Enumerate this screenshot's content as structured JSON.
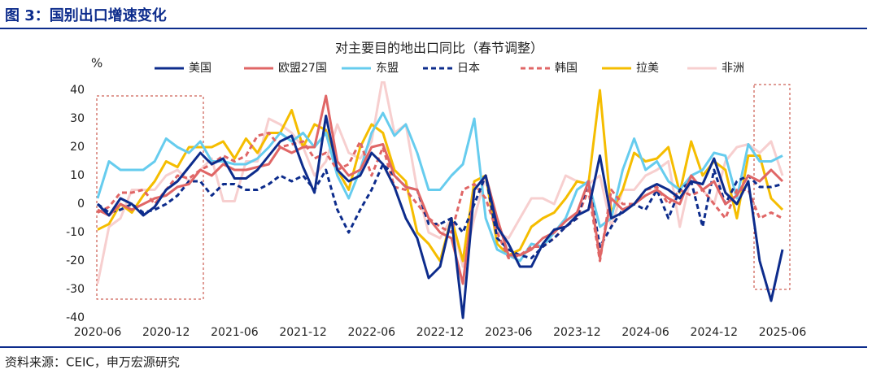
{
  "header": {
    "title": "图 3：国别出口增速变化"
  },
  "source": "资料来源：CEIC，申万宏源研究",
  "chart_data": {
    "type": "line",
    "title": "对主要目的地出口同比（春节调整）",
    "y_label": "%",
    "categories": [
      "2020-06",
      null,
      null,
      null,
      null,
      null,
      "2020-12",
      null,
      null,
      null,
      null,
      null,
      "2021-06",
      null,
      null,
      null,
      null,
      null,
      "2021-12",
      null,
      null,
      null,
      null,
      null,
      "2022-06",
      null,
      null,
      null,
      null,
      null,
      "2022-12",
      null,
      null,
      null,
      null,
      null,
      "2023-06",
      null,
      null,
      null,
      null,
      null,
      "2023-12",
      null,
      null,
      null,
      null,
      null,
      "2024-06",
      null,
      null,
      null,
      null,
      null,
      "2024-12",
      null,
      null,
      null,
      null,
      null,
      "2025-06"
    ],
    "ylim": [
      -40,
      40
    ],
    "yticks": [
      -40,
      -30,
      -20,
      -10,
      0,
      10,
      20,
      30,
      40
    ],
    "grid": false,
    "legend": "top",
    "series": [
      {
        "name": "美国",
        "color": "#0d2c8c",
        "dash": false,
        "values": [
          0,
          -4,
          2,
          0,
          -4,
          -1,
          5,
          8,
          13,
          18,
          14,
          16,
          9,
          9,
          12,
          17,
          22,
          24,
          13,
          4,
          31,
          12,
          8,
          10,
          18,
          14,
          6,
          -5,
          -12,
          -26,
          -22,
          -5,
          -40,
          5,
          10,
          -8,
          -14,
          -22,
          -22,
          -14,
          -9,
          -8,
          -4,
          -2,
          17,
          -5,
          -3,
          0,
          5,
          7,
          5,
          2,
          8,
          7,
          16,
          4,
          0,
          8,
          -20,
          -34,
          -16
        ]
      },
      {
        "name": "欧盟27国",
        "color": "#e06666",
        "dash": false,
        "values": [
          -2,
          -4,
          0,
          -2,
          0,
          2,
          3,
          6,
          7,
          12,
          10,
          14,
          12,
          12,
          13,
          14,
          20,
          18,
          20,
          20,
          38,
          15,
          10,
          12,
          20,
          21,
          10,
          6,
          5,
          -5,
          -10,
          -12,
          -28,
          5,
          10,
          -5,
          -18,
          -18,
          -16,
          -12,
          -10,
          -6,
          -3,
          8,
          -19,
          2,
          -2,
          0,
          3,
          5,
          2,
          0,
          10,
          5,
          8,
          0,
          3,
          10,
          8,
          12,
          8
        ]
      },
      {
        "name": "东盟",
        "color": "#66ccee",
        "dash": false,
        "values": [
          2,
          15,
          12,
          12,
          12,
          15,
          23,
          20,
          18,
          22,
          15,
          15,
          14,
          14,
          16,
          20,
          25,
          22,
          25,
          20,
          25,
          10,
          2,
          12,
          25,
          32,
          24,
          28,
          18,
          5,
          5,
          10,
          14,
          30,
          -5,
          -16,
          -18,
          -20,
          -14,
          -15,
          -10,
          -5,
          5,
          8,
          -8,
          -5,
          12,
          23,
          12,
          15,
          8,
          5,
          10,
          12,
          18,
          17,
          2,
          21,
          15,
          15,
          17
        ]
      },
      {
        "name": "日本",
        "color": "#0d2c8c",
        "dash": true,
        "values": [
          0,
          -3,
          -2,
          0,
          -3,
          -2,
          0,
          3,
          8,
          8,
          3,
          7,
          7,
          5,
          5,
          7,
          10,
          8,
          10,
          5,
          12,
          -2,
          -10,
          -2,
          5,
          14,
          10,
          6,
          5,
          -7,
          -7,
          -5,
          -10,
          0,
          10,
          -12,
          -16,
          -18,
          -19,
          -15,
          -12,
          -8,
          -5,
          8,
          -15,
          -8,
          -2,
          0,
          -2,
          5,
          -5,
          5,
          8,
          -8,
          12,
          0,
          8,
          10,
          6,
          6,
          7
        ]
      },
      {
        "name": "韩国",
        "color": "#e06666",
        "dash": true,
        "values": [
          -3,
          -1,
          4,
          4,
          5,
          0,
          5,
          10,
          9,
          12,
          14,
          17,
          15,
          17,
          24,
          25,
          20,
          21,
          22,
          16,
          18,
          12,
          14,
          22,
          10,
          20,
          6,
          5,
          0,
          -5,
          -8,
          -10,
          5,
          7,
          2,
          -10,
          -19,
          -18,
          -15,
          -15,
          -12,
          -8,
          -5,
          5,
          -20,
          5,
          0,
          0,
          5,
          6,
          0,
          5,
          3,
          5,
          0,
          -5,
          5,
          5,
          -5,
          -3,
          -5
        ]
      },
      {
        "name": "拉美",
        "color": "#f5bd00",
        "dash": false,
        "values": [
          -9,
          -7,
          0,
          -3,
          3,
          8,
          15,
          13,
          20,
          20,
          20,
          22,
          16,
          23,
          18,
          25,
          25,
          33,
          20,
          28,
          26,
          12,
          5,
          20,
          28,
          25,
          12,
          8,
          -10,
          -14,
          -20,
          -5,
          -20,
          8,
          10,
          -14,
          -18,
          -16,
          -8,
          -5,
          -3,
          2,
          8,
          7,
          40,
          -3,
          5,
          18,
          15,
          16,
          20,
          4,
          22,
          10,
          15,
          12,
          -5,
          17,
          17,
          2,
          -2
        ]
      },
      {
        "name": "非洲",
        "color": "#f7cfcf",
        "dash": false,
        "values": [
          -28,
          -8,
          -5,
          5,
          5,
          5,
          10,
          12,
          8,
          12,
          16,
          1,
          1,
          15,
          15,
          30,
          28,
          25,
          20,
          10,
          15,
          28,
          18,
          16,
          22,
          45,
          25,
          28,
          5,
          -10,
          -12,
          -5,
          -22,
          -5,
          10,
          -10,
          -12,
          -5,
          2,
          2,
          0,
          10,
          8,
          7,
          10,
          -8,
          5,
          5,
          10,
          12,
          15,
          -8,
          10,
          5,
          0,
          15,
          20,
          21,
          18,
          22,
          10
        ]
      }
    ]
  }
}
